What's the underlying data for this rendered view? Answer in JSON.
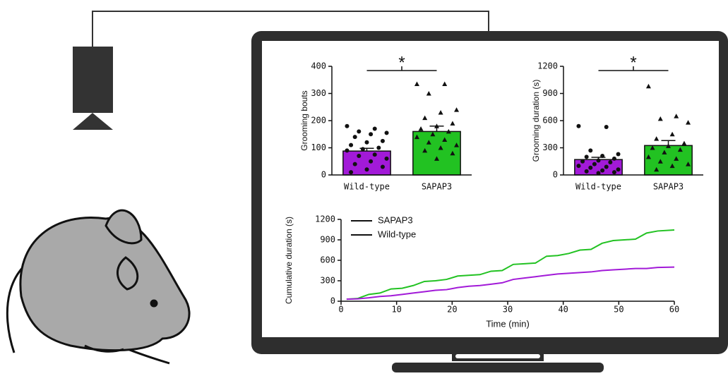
{
  "chart_data": [
    {
      "type": "bar",
      "ylabel": "Grooming bouts",
      "categories": [
        "Wild-type",
        "SAPAP3"
      ],
      "values": [
        88,
        160
      ],
      "errors": [
        10,
        20
      ],
      "colors": [
        "#a21ad8",
        "#22c222"
      ],
      "points": [
        [
          180,
          170,
          160,
          155,
          150,
          140,
          125,
          120,
          110,
          100,
          95,
          90,
          75,
          70,
          60,
          50,
          40,
          30,
          20,
          10
        ],
        [
          335,
          335,
          300,
          240,
          230,
          210,
          190,
          180,
          170,
          160,
          150,
          140,
          130,
          120,
          110,
          100,
          90,
          80,
          60
        ]
      ],
      "annotation": "*",
      "ylim": [
        0,
        400
      ],
      "yticks": [
        0,
        100,
        200,
        300,
        400
      ]
    },
    {
      "type": "bar",
      "ylabel": "Grooming duration (s)",
      "categories": [
        "Wild-type",
        "SAPAP3"
      ],
      "values": [
        170,
        325
      ],
      "errors": [
        25,
        55
      ],
      "colors": [
        "#a21ad8",
        "#22c222"
      ],
      "points": [
        [
          540,
          530,
          270,
          230,
          210,
          200,
          180,
          160,
          150,
          140,
          120,
          100,
          90,
          80,
          60,
          50,
          40,
          30,
          20
        ],
        [
          980,
          650,
          620,
          580,
          450,
          400,
          350,
          320,
          300,
          280,
          250,
          200,
          180,
          150,
          120,
          100,
          60
        ]
      ],
      "annotation": "*",
      "ylim": [
        0,
        1200
      ],
      "yticks": [
        0,
        300,
        600,
        900,
        1200
      ]
    },
    {
      "type": "line",
      "xlabel": "Time (min)",
      "ylabel": "Cumulative duration (s)",
      "x": [
        1,
        3,
        5,
        7,
        9,
        11,
        13,
        15,
        17,
        19,
        21,
        23,
        25,
        27,
        29,
        31,
        33,
        35,
        37,
        39,
        41,
        43,
        45,
        47,
        49,
        51,
        53,
        55,
        57,
        60
      ],
      "series": [
        {
          "name": "SAPAP3",
          "color": "#22c222",
          "values": [
            30,
            40,
            100,
            120,
            180,
            190,
            230,
            290,
            300,
            320,
            370,
            380,
            390,
            440,
            450,
            540,
            550,
            560,
            660,
            670,
            700,
            750,
            760,
            850,
            890,
            900,
            910,
            1000,
            1030,
            1045
          ]
        },
        {
          "name": "Wild-type",
          "color": "#a21ad8",
          "values": [
            30,
            35,
            50,
            70,
            80,
            100,
            120,
            140,
            160,
            170,
            200,
            220,
            230,
            250,
            270,
            320,
            340,
            360,
            380,
            400,
            410,
            420,
            430,
            450,
            460,
            470,
            480,
            480,
            495,
            500
          ]
        }
      ],
      "xlim": [
        0,
        60
      ],
      "xticks": [
        0,
        10,
        20,
        30,
        40,
        50,
        60
      ],
      "ylim": [
        0,
        1200
      ],
      "yticks": [
        0,
        300,
        600,
        900,
        1200
      ]
    }
  ]
}
